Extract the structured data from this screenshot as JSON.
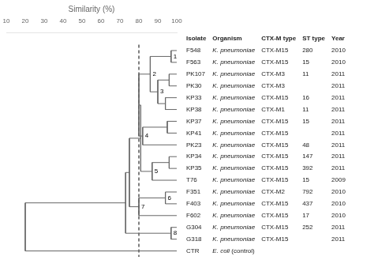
{
  "chart_data": {
    "type": "dendrogram",
    "x_label": "Similarity (%)",
    "xlim": [
      10,
      100
    ],
    "xticks": [
      10,
      20,
      30,
      40,
      50,
      60,
      70,
      80,
      90,
      100
    ],
    "grid": false,
    "color": "#666666",
    "dashed_line_similarity": 80,
    "columns": [
      "Isolate",
      "Organism",
      "CTX-M type",
      "ST type",
      "Year"
    ],
    "rows": [
      [
        "F548",
        "K. pneumoniae",
        "CTX-M15",
        "280",
        "2010"
      ],
      [
        "F563",
        "K. pneumoniae",
        "CTX-M15",
        "15",
        "2010"
      ],
      [
        "PK107",
        "K. pneumoniae",
        "CTX-M3",
        "11",
        "2011"
      ],
      [
        "PK30",
        "K. pneumoniae",
        "CTX-M3",
        null,
        "2011"
      ],
      [
        "KP33",
        "K. pneumoniae",
        "CTX-M15",
        "16",
        "2011"
      ],
      [
        "KP38",
        "K. pneumoniae",
        "CTX-M1",
        "11",
        "2011"
      ],
      [
        "KP37",
        "K. pneumoniae",
        "CTX-M15",
        "15",
        "2011"
      ],
      [
        "KP41",
        "K. pneumoniae",
        "CTX-M15",
        null,
        "2011"
      ],
      [
        "PK23",
        "K. pneumoniae",
        "CTX-M15",
        "48",
        "2011"
      ],
      [
        "KP34",
        "K. pneumoniae",
        "CTX-M15",
        "147",
        "2011"
      ],
      [
        "KP35",
        "K. pneumoniae",
        "CTX-M15",
        "392",
        "2011"
      ],
      [
        "T76",
        "K. pneumoniae",
        "CTX-M15",
        "15",
        "2009"
      ],
      [
        "F351",
        "K. pneumoniae",
        "CTX-M2",
        "792",
        "2010"
      ],
      [
        "F403",
        "K. pneumoniae",
        "CTX-M15",
        "437",
        "2010"
      ],
      [
        "F602",
        "K. pneumoniae",
        "CTX-M15",
        "17",
        "2010"
      ],
      [
        "G304",
        "K. pneumoniae",
        "CTX-M15",
        "252",
        "2011"
      ],
      [
        "G318",
        "K. pneumoniae",
        "CTX-M15",
        null,
        "2011"
      ],
      [
        "CTR",
        "E. coli (control)",
        null,
        null,
        null
      ]
    ],
    "tree": {
      "similarity": 20,
      "children": [
        {
          "similarity": 73,
          "children": [
            {
              "similarity": 75,
              "children": [
                {
                  "similarity": 81,
                  "children": [
                    {
                      "similarity": 80,
                      "children": [
                        {
                          "similarity": 86,
                          "label": "2",
                          "children": [
                            {
                              "similarity": 97,
                              "label": "1",
                              "children": [
                                "F548",
                                "F563"
                              ]
                            },
                            {
                              "similarity": 90,
                              "label": "3",
                              "children": [
                                {
                                  "similarity": 96,
                                  "children": [
                                    "PK107",
                                    "PK30"
                                  ]
                                },
                                {
                                  "similarity": 94,
                                  "children": [
                                    "KP33",
                                    "KP38"
                                  ]
                                }
                              ]
                            }
                          ]
                        },
                        {
                          "similarity": 82,
                          "label": "4",
                          "children": [
                            {
                              "similarity": 95,
                              "children": [
                                "KP37",
                                "KP41"
                              ]
                            },
                            "PK23"
                          ]
                        }
                      ]
                    },
                    {
                      "similarity": 87,
                      "label": "5",
                      "children": [
                        {
                          "similarity": 96,
                          "children": [
                            "KP34",
                            "KP35"
                          ]
                        },
                        "T76"
                      ]
                    }
                  ]
                },
                {
                  "similarity": 80,
                  "label": "7",
                  "children": [
                    {
                      "similarity": 94,
                      "label": "6",
                      "children": [
                        "F351",
                        "F403"
                      ]
                    },
                    "F602"
                  ]
                }
              ]
            },
            {
              "similarity": 97,
              "label": "8",
              "children": [
                "G304",
                "G318"
              ]
            }
          ]
        },
        "CTR"
      ]
    }
  }
}
